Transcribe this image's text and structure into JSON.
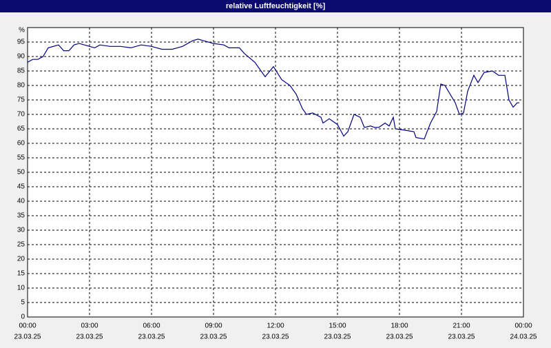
{
  "chart_data": {
    "type": "line",
    "title": "relative Luftfeuchtigkeit [%]",
    "y_label": "%",
    "x": [
      0,
      0.25,
      0.5,
      0.75,
      1,
      1.5,
      1.75,
      2,
      2.25,
      2.5,
      3,
      3.25,
      3.5,
      4,
      4.5,
      5,
      5.5,
      6,
      6.5,
      7,
      7.5,
      8,
      8.25,
      8.5,
      9,
      9.5,
      9.75,
      10,
      10.25,
      10.5,
      11,
      11.5,
      11.9,
      12.3,
      12.7,
      13,
      13.3,
      13.5,
      13.8,
      14.2,
      14.3,
      14.6,
      15,
      15.3,
      15.5,
      15.8,
      16.1,
      16.3,
      16.6,
      16.8,
      17,
      17.3,
      17.5,
      17.7,
      17.8,
      18.3,
      18.7,
      18.8,
      19.2,
      19.5,
      19.8,
      20,
      20.2,
      20.7,
      20.9,
      21.1,
      21.3,
      21.6,
      21.8,
      22.1,
      22.5,
      22.8,
      23.1,
      23.3,
      23.5,
      23.7,
      23.8
    ],
    "series": [
      {
        "name": "relative Luftfeuchtigkeit",
        "color": "#000080",
        "values": [
          88,
          89,
          89,
          90,
          93,
          94,
          92,
          92,
          94,
          94.5,
          93.5,
          93,
          94,
          93.5,
          93.5,
          93,
          94,
          93.5,
          92.5,
          92.5,
          93.5,
          95.5,
          96,
          95.5,
          94.5,
          94,
          93,
          93,
          93,
          91,
          88,
          83,
          86.5,
          82,
          80,
          77,
          72,
          70,
          70.5,
          69,
          67,
          68.5,
          66.5,
          62.5,
          64,
          70,
          69,
          65.5,
          66,
          65.5,
          65.5,
          67,
          66,
          69,
          65,
          64.5,
          64,
          62,
          61.5,
          67,
          71,
          80.5,
          80,
          74,
          70,
          70.5,
          78,
          83.5,
          81,
          84.5,
          85,
          83.5,
          83.5,
          75,
          72.5,
          74,
          74
        ]
      }
    ],
    "xlim": [
      0,
      24
    ],
    "ylim": [
      0,
      100
    ],
    "yticks": [
      0,
      5,
      10,
      15,
      20,
      25,
      30,
      35,
      40,
      45,
      50,
      55,
      60,
      65,
      70,
      75,
      80,
      85,
      90,
      95
    ],
    "xticks": [
      {
        "value": 0,
        "label": "00:00"
      },
      {
        "value": 3,
        "label": "03:00"
      },
      {
        "value": 6,
        "label": "06:00"
      },
      {
        "value": 9,
        "label": "09:00"
      },
      {
        "value": 12,
        "label": "12:00"
      },
      {
        "value": 15,
        "label": "15:00"
      },
      {
        "value": 18,
        "label": "18:00"
      },
      {
        "value": 21,
        "label": "21:00"
      },
      {
        "value": 24,
        "label": "00:00"
      }
    ],
    "xtick_dates": [
      "23.03.25",
      "23.03.25",
      "23.03.25",
      "23.03.25",
      "23.03.25",
      "23.03.25",
      "23.03.25",
      "23.03.25",
      "24.03.25"
    ],
    "grid": true
  }
}
